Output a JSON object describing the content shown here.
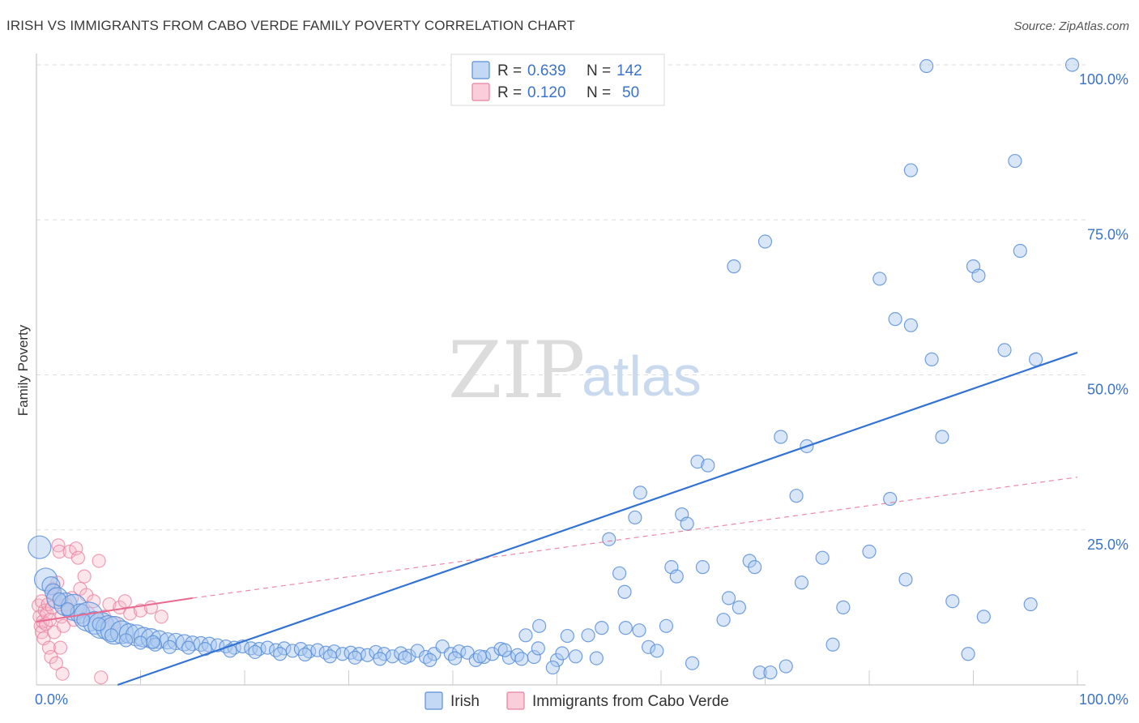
{
  "title": "IRISH VS IMMIGRANTS FROM CABO VERDE FAMILY POVERTY CORRELATION CHART",
  "source": "Source: ZipAtlas.com",
  "watermark": {
    "zip": "ZIP",
    "atlas": "atlas"
  },
  "colors": {
    "irish_fill": "#a9c7f0",
    "irish_stroke": "#5b8fd8",
    "irish_line": "#3272d4",
    "cabo_fill": "#f6b8c9",
    "cabo_stroke": "#e8829f",
    "cabo_line": "#e86a8e",
    "axis_tick": "#3b73c8",
    "grid": "#dddddd"
  },
  "legend_top": {
    "rows": [
      {
        "r_label": "R = ",
        "r_value": "0.639",
        "n_label": "N = ",
        "n_value": "142"
      },
      {
        "r_label": "R = ",
        "r_value": "0.120",
        "n_label": "N = ",
        "n_value": "50"
      }
    ]
  },
  "chart_data": {
    "type": "scatter",
    "title": "IRISH VS IMMIGRANTS FROM CABO VERDE FAMILY POVERTY CORRELATION CHART",
    "xlabel": "",
    "ylabel": "Family Poverty",
    "xlim": [
      0,
      100
    ],
    "ylim": [
      0,
      100
    ],
    "x_tick_labels": [
      "0.0%",
      "100.0%"
    ],
    "y_tick_labels": [
      "25.0%",
      "50.0%",
      "75.0%",
      "100.0%"
    ],
    "y_ticks": [
      25,
      50,
      75,
      100
    ],
    "grid": true,
    "legend_position": "top-center",
    "series": [
      {
        "name": "Irish",
        "R": 0.639,
        "N": 142,
        "trend": {
          "x": [
            7.8,
            100
          ],
          "y": [
            0,
            53.6
          ],
          "style": "solid"
        },
        "points": [
          [
            0.3,
            22.2,
            14
          ],
          [
            0.9,
            17.0,
            14
          ],
          [
            1.4,
            16.0,
            11
          ],
          [
            1.6,
            15.0,
            10
          ],
          [
            2.0,
            14.0,
            13
          ],
          [
            2.8,
            13.0,
            14
          ],
          [
            3.6,
            12.5,
            16
          ],
          [
            4.2,
            11.5,
            12
          ],
          [
            5.0,
            11.0,
            18
          ],
          [
            5.6,
            10.0,
            14
          ],
          [
            6.2,
            9.6,
            16
          ],
          [
            6.9,
            9.2,
            15
          ],
          [
            7.5,
            8.8,
            17
          ],
          [
            8.2,
            8.5,
            14
          ],
          [
            8.9,
            8.3,
            12
          ],
          [
            9.6,
            8.0,
            13
          ],
          [
            10.3,
            7.7,
            12
          ],
          [
            11.0,
            7.5,
            12
          ],
          [
            11.8,
            7.3,
            11
          ],
          [
            12.6,
            7.1,
            10
          ],
          [
            13.4,
            7.0,
            10
          ],
          [
            14.2,
            6.8,
            10
          ],
          [
            15.0,
            6.7,
            9
          ],
          [
            15.8,
            6.6,
            9
          ],
          [
            16.6,
            6.5,
            9
          ],
          [
            17.4,
            6.4,
            8
          ],
          [
            18.2,
            6.2,
            8
          ],
          [
            19.0,
            6.0,
            8
          ],
          [
            19.8,
            6.2,
            8
          ],
          [
            20.6,
            5.9,
            8
          ],
          [
            21.4,
            5.8,
            8
          ],
          [
            22.2,
            6.0,
            8
          ],
          [
            23.0,
            5.6,
            8
          ],
          [
            23.8,
            5.9,
            8
          ],
          [
            24.6,
            5.5,
            8
          ],
          [
            25.4,
            5.8,
            8
          ],
          [
            26.2,
            5.4,
            8
          ],
          [
            27.0,
            5.6,
            8
          ],
          [
            27.8,
            5.2,
            8
          ],
          [
            28.6,
            5.4,
            8
          ],
          [
            29.4,
            5.0,
            8
          ],
          [
            30.2,
            5.2,
            8
          ],
          [
            31.0,
            5.0,
            8
          ],
          [
            31.8,
            4.8,
            8
          ],
          [
            32.6,
            5.3,
            8
          ],
          [
            33.4,
            5.0,
            8
          ],
          [
            34.2,
            4.6,
            8
          ],
          [
            35.0,
            5.1,
            8
          ],
          [
            35.8,
            4.7,
            8
          ],
          [
            36.6,
            5.5,
            8
          ],
          [
            37.4,
            4.5,
            8
          ],
          [
            38.2,
            5.0,
            8
          ],
          [
            39.0,
            6.2,
            8
          ],
          [
            39.8,
            5.0,
            8
          ],
          [
            40.6,
            5.4,
            8
          ],
          [
            41.4,
            5.2,
            8
          ],
          [
            42.2,
            4.0,
            8
          ],
          [
            43.0,
            4.5,
            8
          ],
          [
            43.8,
            5.0,
            8
          ],
          [
            44.6,
            5.8,
            8
          ],
          [
            45.4,
            4.4,
            8
          ],
          [
            46.2,
            4.8,
            8
          ],
          [
            47.0,
            8.0,
            8
          ],
          [
            47.8,
            4.5,
            8
          ],
          [
            2.2,
            13.8,
            8
          ],
          [
            3.0,
            12.2,
            8
          ],
          [
            4.5,
            10.5,
            8
          ],
          [
            6.0,
            9.8,
            8
          ],
          [
            7.2,
            8.0,
            8
          ],
          [
            8.6,
            7.2,
            8
          ],
          [
            10.0,
            6.8,
            8
          ],
          [
            11.4,
            6.5,
            8
          ],
          [
            12.8,
            6.1,
            8
          ],
          [
            14.6,
            6.0,
            8
          ],
          [
            16.2,
            5.8,
            8
          ],
          [
            18.6,
            5.5,
            8
          ],
          [
            21.0,
            5.3,
            8
          ],
          [
            23.4,
            5.0,
            8
          ],
          [
            25.8,
            4.9,
            8
          ],
          [
            28.2,
            4.6,
            8
          ],
          [
            30.6,
            4.4,
            8
          ],
          [
            33.0,
            4.2,
            8
          ],
          [
            35.4,
            4.4,
            8
          ],
          [
            37.8,
            4.0,
            8
          ],
          [
            40.2,
            4.3,
            8
          ],
          [
            42.6,
            4.6,
            8
          ],
          [
            45.0,
            5.6,
            8
          ],
          [
            46.6,
            4.2,
            8
          ],
          [
            48.2,
            5.9,
            8
          ],
          [
            11.2,
            6.9,
            8
          ],
          [
            48.3,
            9.5,
            8
          ],
          [
            51.0,
            7.9,
            8
          ],
          [
            53.0,
            8.0,
            8
          ],
          [
            50.0,
            4.0,
            8
          ],
          [
            50.5,
            5.1,
            8
          ],
          [
            53.8,
            4.3,
            8
          ],
          [
            51.8,
            4.6,
            8
          ],
          [
            49.6,
            2.8,
            8
          ],
          [
            54.3,
            9.2,
            8
          ],
          [
            56.6,
            9.2,
            8
          ],
          [
            57.9,
            8.8,
            8
          ],
          [
            60.5,
            9.5,
            8
          ],
          [
            55.0,
            23.5,
            8
          ],
          [
            56.0,
            18.0,
            8
          ],
          [
            56.5,
            15.0,
            8
          ],
          [
            58.8,
            6.1,
            8
          ],
          [
            59.6,
            5.5,
            8
          ],
          [
            62.0,
            27.5,
            8
          ],
          [
            62.5,
            26.0,
            8
          ],
          [
            63.5,
            36.0,
            8
          ],
          [
            64.5,
            35.4,
            8
          ],
          [
            57.5,
            27.0,
            8
          ],
          [
            58.0,
            31.0,
            8
          ],
          [
            61.0,
            19.0,
            8
          ],
          [
            61.5,
            17.5,
            8
          ],
          [
            64.0,
            19.0,
            8
          ],
          [
            66.0,
            10.5,
            8
          ],
          [
            66.5,
            14.0,
            8
          ],
          [
            67.5,
            12.5,
            8
          ],
          [
            68.5,
            20.0,
            8
          ],
          [
            69.0,
            19.0,
            8
          ],
          [
            69.5,
            2.0,
            8
          ],
          [
            70.0,
            71.5,
            8
          ],
          [
            71.5,
            40.0,
            8
          ],
          [
            73.0,
            30.5,
            8
          ],
          [
            73.5,
            16.5,
            8
          ],
          [
            74.0,
            38.5,
            8
          ],
          [
            75.5,
            20.5,
            8
          ],
          [
            76.5,
            6.5,
            8
          ],
          [
            77.5,
            12.5,
            8
          ],
          [
            80.0,
            21.5,
            8
          ],
          [
            81.0,
            65.5,
            8
          ],
          [
            82.0,
            30.0,
            8
          ],
          [
            82.5,
            59.0,
            8
          ],
          [
            83.5,
            17.0,
            8
          ],
          [
            84.0,
            58.0,
            8
          ],
          [
            86.0,
            52.5,
            8
          ],
          [
            87.0,
            40.0,
            8
          ],
          [
            88.0,
            13.5,
            8
          ],
          [
            89.5,
            5.0,
            8
          ],
          [
            90.0,
            67.5,
            8
          ],
          [
            90.5,
            66.0,
            8
          ],
          [
            91.0,
            11.0,
            8
          ],
          [
            93.0,
            54.0,
            8
          ],
          [
            94.0,
            84.5,
            8
          ],
          [
            94.5,
            70.0,
            8
          ],
          [
            95.5,
            13.0,
            8
          ],
          [
            96.0,
            52.5,
            8
          ],
          [
            67.0,
            67.5,
            8
          ],
          [
            63.0,
            3.5,
            8
          ],
          [
            72.0,
            3.0,
            8
          ],
          [
            70.5,
            2.0,
            8
          ],
          [
            84.0,
            83.0,
            8
          ],
          [
            85.5,
            99.8,
            8
          ],
          [
            99.5,
            100.0,
            8
          ]
        ]
      },
      {
        "name": "Immigrants from Cabo Verde",
        "R": 0.12,
        "N": 50,
        "trend_solid": {
          "x": [
            0,
            15
          ],
          "y": [
            10.2,
            14.0
          ]
        },
        "trend_dashed": {
          "x": [
            15,
            100
          ],
          "y": [
            14.0,
            33.5
          ]
        },
        "points": [
          [
            0.2,
            12.8
          ],
          [
            0.3,
            11.0
          ],
          [
            0.4,
            9.5
          ],
          [
            0.5,
            8.5
          ],
          [
            0.5,
            13.5
          ],
          [
            0.6,
            10.2
          ],
          [
            0.7,
            7.5
          ],
          [
            0.8,
            12.0
          ],
          [
            0.9,
            9.8
          ],
          [
            1.0,
            11.5
          ],
          [
            1.1,
            13.0
          ],
          [
            1.2,
            6.0
          ],
          [
            1.3,
            10.5
          ],
          [
            1.4,
            4.5
          ],
          [
            1.5,
            12.5
          ],
          [
            1.6,
            15.5
          ],
          [
            1.7,
            8.5
          ],
          [
            1.8,
            14.5
          ],
          [
            1.9,
            3.5
          ],
          [
            2.0,
            16.5
          ],
          [
            2.1,
            22.5
          ],
          [
            2.2,
            21.5
          ],
          [
            2.4,
            11.0
          ],
          [
            2.6,
            9.5
          ],
          [
            2.8,
            13.0
          ],
          [
            3.0,
            12.0
          ],
          [
            3.2,
            21.5
          ],
          [
            3.4,
            14.0
          ],
          [
            3.6,
            10.5
          ],
          [
            3.8,
            22.0
          ],
          [
            4.0,
            20.5
          ],
          [
            4.2,
            15.5
          ],
          [
            4.4,
            12.0
          ],
          [
            4.6,
            17.5
          ],
          [
            4.8,
            14.5
          ],
          [
            5.0,
            11.5
          ],
          [
            5.5,
            13.5
          ],
          [
            6.0,
            20.0
          ],
          [
            6.5,
            11.0
          ],
          [
            7.0,
            13.0
          ],
          [
            7.5,
            10.0
          ],
          [
            8.0,
            12.5
          ],
          [
            8.5,
            13.5
          ],
          [
            9.0,
            11.5
          ],
          [
            10.0,
            12.0
          ],
          [
            11.0,
            12.5
          ],
          [
            12.0,
            11.0
          ],
          [
            2.3,
            6.0
          ],
          [
            2.5,
            1.8
          ],
          [
            6.2,
            1.2
          ]
        ]
      }
    ]
  },
  "legend_bottom": {
    "items": [
      {
        "label": "Irish"
      },
      {
        "label": "Immigrants from Cabo Verde"
      }
    ]
  }
}
